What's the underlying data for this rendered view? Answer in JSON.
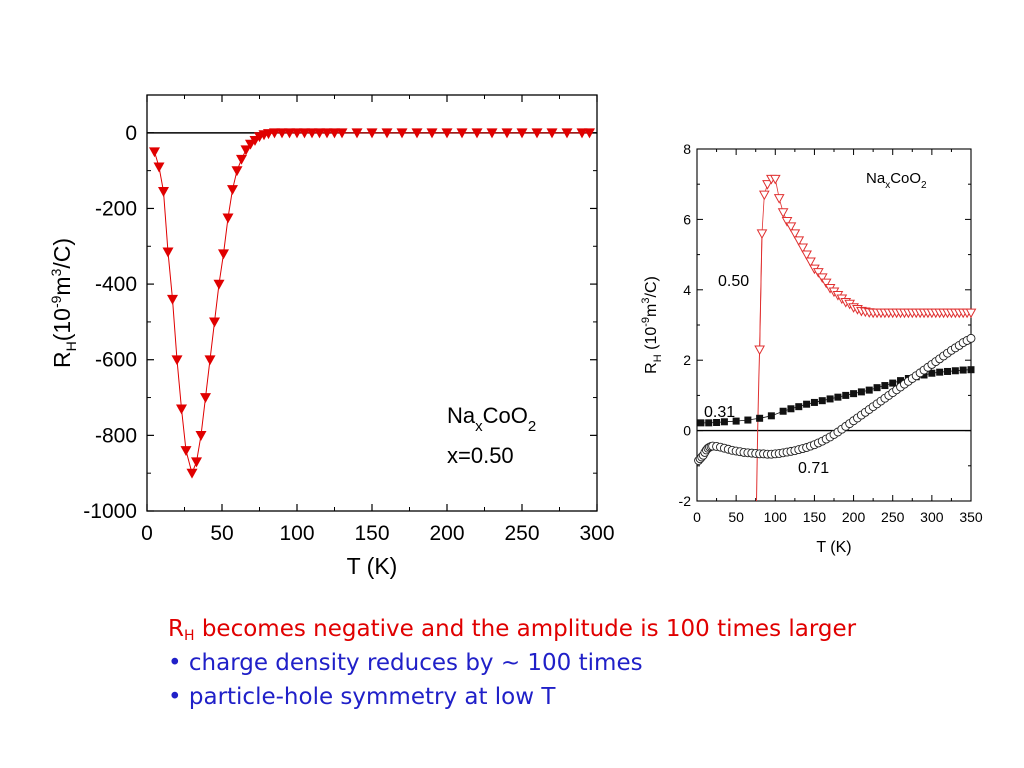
{
  "chart_data": [
    {
      "type": "scatter",
      "title": "",
      "xlabel": "T (K)",
      "ylabel": "R_H(10^-9 m^3/C)",
      "xlim": [
        0,
        300
      ],
      "ylim": [
        -1000,
        100
      ],
      "xticks": [
        0,
        50,
        100,
        150,
        200,
        250,
        300
      ],
      "yticks": [
        0,
        -200,
        -400,
        -600,
        -800,
        -1000
      ],
      "zero_line": true,
      "grid": false,
      "annotation": [
        "Na",
        "x",
        "CoO",
        "2",
        "x=0.50"
      ],
      "series": [
        {
          "name": "",
          "marker": "filled-down-triangle",
          "color": "#e00000",
          "x": [
            5,
            8,
            11,
            14,
            17,
            20,
            23,
            26,
            30,
            33,
            36,
            39,
            42,
            45,
            48,
            51,
            54,
            57,
            60,
            63,
            66,
            69,
            72,
            75,
            78,
            81,
            85,
            90,
            95,
            100,
            105,
            110,
            115,
            120,
            125,
            130,
            140,
            150,
            160,
            170,
            180,
            190,
            200,
            210,
            220,
            230,
            240,
            250,
            260,
            270,
            280,
            290,
            295
          ],
          "y": [
            -50,
            -90,
            -155,
            -315,
            -440,
            -600,
            -730,
            -840,
            -900,
            -870,
            -800,
            -700,
            -600,
            -500,
            -400,
            -320,
            -225,
            -150,
            -100,
            -70,
            -45,
            -30,
            -20,
            -10,
            -5,
            -2,
            0,
            0,
            0,
            0,
            0,
            0,
            0,
            0,
            0,
            0,
            0,
            0,
            0,
            0,
            0,
            0,
            0,
            0,
            0,
            0,
            0,
            0,
            0,
            0,
            0,
            0,
            0
          ]
        }
      ]
    },
    {
      "type": "scatter",
      "title": "",
      "xlabel": "T (K)",
      "ylabel": "R_H (10^-9 m^3/C)",
      "xlim": [
        0,
        350
      ],
      "ylim": [
        -2,
        8
      ],
      "xticks": [
        0,
        50,
        100,
        150,
        200,
        250,
        300,
        350
      ],
      "yticks": [
        -2,
        0,
        2,
        4,
        6,
        8
      ],
      "zero_line": true,
      "grid": false,
      "annotation": [
        "Na",
        "x",
        "CoO",
        "2"
      ],
      "series": [
        {
          "name": "0.50",
          "marker": "open-down-triangle",
          "color": "#e03030",
          "x": [
            80,
            83,
            86,
            90,
            95,
            100,
            105,
            110,
            115,
            120,
            125,
            130,
            135,
            140,
            145,
            150,
            155,
            160,
            165,
            170,
            175,
            180,
            185,
            190,
            195,
            200,
            205,
            210,
            215,
            220,
            225,
            230,
            235,
            240,
            245,
            250,
            255,
            260,
            265,
            270,
            275,
            280,
            285,
            290,
            295,
            300,
            305,
            310,
            315,
            320,
            325,
            330,
            335,
            340,
            345,
            350
          ],
          "y": [
            2.3,
            5.6,
            6.7,
            7.0,
            7.15,
            7.15,
            6.6,
            6.2,
            5.95,
            5.8,
            5.6,
            5.4,
            5.2,
            5.0,
            4.8,
            4.6,
            4.5,
            4.35,
            4.2,
            4.05,
            3.95,
            3.85,
            3.75,
            3.65,
            3.6,
            3.5,
            3.45,
            3.4,
            3.38,
            3.36,
            3.35,
            3.35,
            3.35,
            3.35,
            3.35,
            3.35,
            3.35,
            3.35,
            3.35,
            3.35,
            3.35,
            3.35,
            3.35,
            3.35,
            3.35,
            3.35,
            3.35,
            3.35,
            3.35,
            3.35,
            3.35,
            3.35,
            3.35,
            3.35,
            3.35,
            3.35
          ],
          "connector_x": [
            76,
            77.5,
            79,
            80,
            83
          ],
          "connector_y": [
            -2,
            0,
            1.5,
            2.3,
            5.6
          ]
        },
        {
          "name": "0.31",
          "marker": "filled-square",
          "color": "#111111",
          "x": [
            5,
            15,
            25,
            35,
            50,
            65,
            80,
            95,
            110,
            120,
            130,
            140,
            150,
            160,
            170,
            180,
            190,
            200,
            210,
            220,
            230,
            240,
            250,
            260,
            270,
            280,
            290,
            300,
            310,
            320,
            330,
            340,
            350
          ],
          "y": [
            0.22,
            0.22,
            0.23,
            0.25,
            0.27,
            0.3,
            0.35,
            0.42,
            0.55,
            0.62,
            0.68,
            0.75,
            0.8,
            0.85,
            0.9,
            0.95,
            1.0,
            1.05,
            1.1,
            1.15,
            1.22,
            1.28,
            1.35,
            1.42,
            1.48,
            1.53,
            1.58,
            1.63,
            1.66,
            1.68,
            1.7,
            1.72,
            1.73
          ]
        },
        {
          "name": "0.71",
          "marker": "open-circle",
          "color": "#222222",
          "x": [
            2,
            4,
            6,
            8,
            10,
            12,
            14,
            16,
            18,
            20,
            25,
            30,
            35,
            40,
            45,
            50,
            55,
            60,
            65,
            70,
            75,
            80,
            85,
            90,
            95,
            100,
            105,
            110,
            115,
            120,
            125,
            130,
            135,
            140,
            145,
            150,
            155,
            160,
            165,
            170,
            175,
            180,
            185,
            190,
            195,
            200,
            205,
            210,
            215,
            220,
            225,
            230,
            235,
            240,
            245,
            250,
            255,
            260,
            265,
            270,
            275,
            280,
            285,
            290,
            295,
            300,
            305,
            310,
            315,
            320,
            325,
            330,
            335,
            340,
            345,
            350
          ],
          "y": [
            -0.85,
            -0.8,
            -0.75,
            -0.7,
            -0.62,
            -0.55,
            -0.5,
            -0.47,
            -0.45,
            -0.44,
            -0.45,
            -0.47,
            -0.5,
            -0.53,
            -0.56,
            -0.58,
            -0.6,
            -0.62,
            -0.63,
            -0.64,
            -0.65,
            -0.66,
            -0.66,
            -0.67,
            -0.67,
            -0.66,
            -0.65,
            -0.63,
            -0.61,
            -0.59,
            -0.57,
            -0.54,
            -0.51,
            -0.48,
            -0.44,
            -0.4,
            -0.35,
            -0.3,
            -0.24,
            -0.18,
            -0.11,
            -0.04,
            0.04,
            0.12,
            0.2,
            0.28,
            0.36,
            0.44,
            0.52,
            0.6,
            0.68,
            0.76,
            0.84,
            0.92,
            1.0,
            1.08,
            1.16,
            1.24,
            1.32,
            1.4,
            1.48,
            1.56,
            1.64,
            1.72,
            1.8,
            1.88,
            1.96,
            2.04,
            2.12,
            2.2,
            2.28,
            2.35,
            2.42,
            2.5,
            2.56,
            2.62
          ]
        }
      ]
    }
  ],
  "caption": {
    "line1_r": "R",
    "line1_sub": "H",
    "line1_rest": " becomes negative and the amplitude is 100 times larger",
    "line2": "• charge density reduces by ~ 100 times",
    "line3": "• particle-hole symmetry at low T"
  },
  "colors": {
    "red_text": "#e00000",
    "blue_text": "#2020c8",
    "series_red": "#e00000"
  }
}
